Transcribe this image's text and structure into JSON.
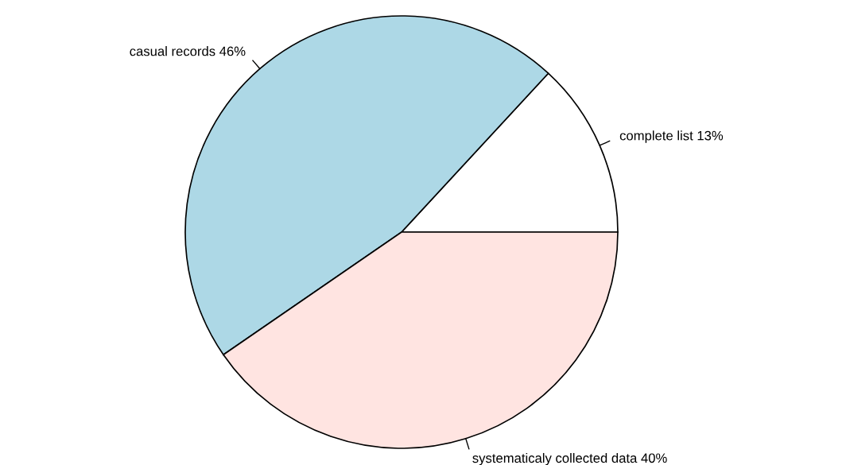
{
  "chart_data": {
    "type": "pie",
    "categories": [
      "complete list",
      "casual records",
      "systematicaly collected data"
    ],
    "values": [
      13,
      46,
      40
    ],
    "value_labels": [
      "13%",
      "46%",
      "40%"
    ],
    "colors": [
      "#ffffff",
      "#add8e6",
      "#ffe4e1"
    ]
  }
}
